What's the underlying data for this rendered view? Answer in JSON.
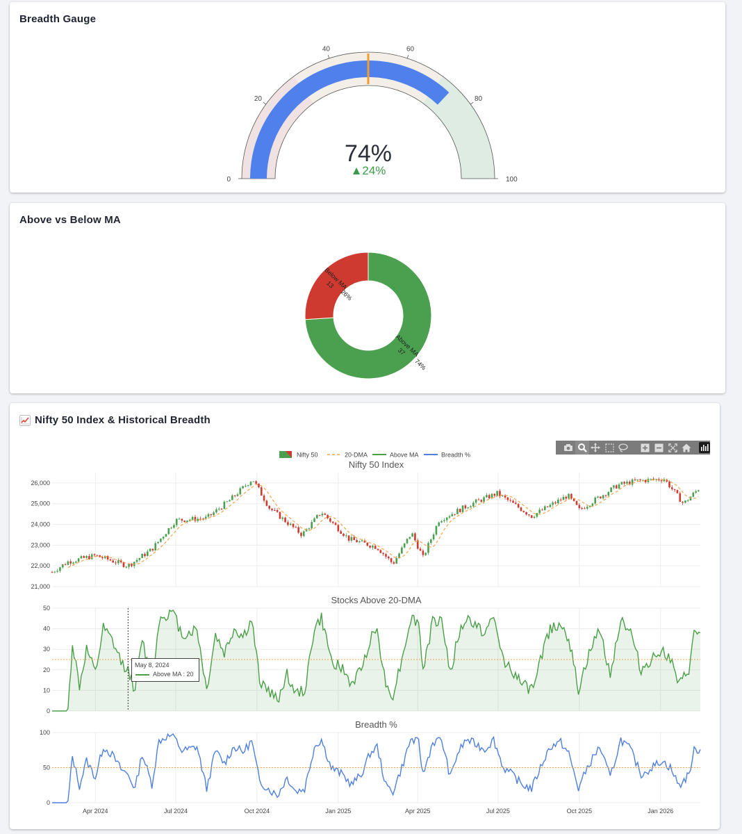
{
  "gauge_card": {
    "title": "Breadth Gauge",
    "value_text": "74%",
    "delta_text": "▲24%",
    "value": 74,
    "reference": 50,
    "threshold": 50,
    "ticks": [
      "0",
      "20",
      "40",
      "60",
      "80",
      "100"
    ],
    "bands": [
      {
        "from": 0,
        "to": 30,
        "color": "#f0e2e2"
      },
      {
        "from": 30,
        "to": 70,
        "color": "#f3efe8"
      },
      {
        "from": 70,
        "to": 100,
        "color": "#dfece3"
      }
    ],
    "bar_color": "#5080ec",
    "threshold_color": "#f39c2b",
    "delta_color": "#3d9a4b"
  },
  "donut_card": {
    "title": "Above vs Below MA",
    "slices": [
      {
        "label": "Above MA",
        "value": 37,
        "pct": "74%",
        "color": "#4aa04e"
      },
      {
        "label": "Below MA",
        "value": 13,
        "pct": "26%",
        "color": "#cf3a30"
      }
    ]
  },
  "history_card": {
    "icon": "chart-increasing-icon",
    "title": "Nifty 50 Index & Historical Breadth",
    "legend": [
      {
        "name": "Nifty 50",
        "kind": "candle"
      },
      {
        "name": "20-DMA",
        "kind": "dash",
        "color": "#f2a34a"
      },
      {
        "name": "Above MA",
        "kind": "line",
        "color": "#4a9f48"
      },
      {
        "name": "Breadth %",
        "kind": "line",
        "color": "#4d7fe0"
      }
    ],
    "tooltip": {
      "date": "May 8, 2024",
      "series": "Above MA : 20"
    },
    "modebar": [
      "camera-icon",
      "zoom-icon",
      "pan-icon",
      "box-select-icon",
      "lasso-icon",
      "zoom-in-icon",
      "zoom-out-icon",
      "autoscale-icon",
      "home-icon",
      "plotly-logo-icon"
    ]
  },
  "chart_data": [
    {
      "type": "candlestick",
      "title": "Nifty 50 Index",
      "ylim": [
        21000,
        26500
      ],
      "yticks": [
        "21,000",
        "22,000",
        "23,000",
        "24,000",
        "25,000",
        "26,000"
      ],
      "x_range": [
        "2024-02-12",
        "2026-02-15"
      ],
      "series": [
        {
          "name": "Nifty 50"
        },
        {
          "name": "20-DMA"
        }
      ],
      "path_points": [
        [
          "2024-02-12",
          21700
        ],
        [
          "2024-03-01",
          22200
        ],
        [
          "2024-04-01",
          22500
        ],
        [
          "2024-05-08",
          22000
        ],
        [
          "2024-06-04",
          22800
        ],
        [
          "2024-07-01",
          24200
        ],
        [
          "2024-08-05",
          24300
        ],
        [
          "2024-09-01",
          25200
        ],
        [
          "2024-09-26",
          26200
        ],
        [
          "2024-10-15",
          24800
        ],
        [
          "2024-11-21",
          23500
        ],
        [
          "2024-12-13",
          24600
        ],
        [
          "2025-01-13",
          23300
        ],
        [
          "2025-02-14",
          22900
        ],
        [
          "2025-03-04",
          22100
        ],
        [
          "2025-03-25",
          23600
        ],
        [
          "2025-04-07",
          22400
        ],
        [
          "2025-04-25",
          24200
        ],
        [
          "2025-06-01",
          25000
        ],
        [
          "2025-06-30",
          25500
        ],
        [
          "2025-08-08",
          24400
        ],
        [
          "2025-09-18",
          25400
        ],
        [
          "2025-10-01",
          24700
        ],
        [
          "2025-11-14",
          25900
        ],
        [
          "2025-12-05",
          26100
        ],
        [
          "2026-01-05",
          26200
        ],
        [
          "2026-01-27",
          25000
        ],
        [
          "2026-02-15",
          25800
        ]
      ]
    },
    {
      "type": "area",
      "title": "Stocks Above 20-DMA",
      "ylim": [
        0,
        50
      ],
      "yticks": [
        "0",
        "10",
        "20",
        "30",
        "40",
        "50"
      ],
      "reference_line": 25,
      "series": [
        {
          "name": "Above MA"
        }
      ],
      "points": [
        [
          "2024-02-12",
          0
        ],
        [
          "2024-03-01",
          0
        ],
        [
          "2024-03-06",
          33
        ],
        [
          "2024-03-14",
          12
        ],
        [
          "2024-03-22",
          30
        ],
        [
          "2024-04-01",
          18
        ],
        [
          "2024-04-10",
          40
        ],
        [
          "2024-04-20",
          34
        ],
        [
          "2024-04-30",
          24
        ],
        [
          "2024-05-08",
          20
        ],
        [
          "2024-05-16",
          10
        ],
        [
          "2024-05-24",
          35
        ],
        [
          "2024-06-04",
          13
        ],
        [
          "2024-06-12",
          44
        ],
        [
          "2024-06-20",
          47
        ],
        [
          "2024-06-28",
          48
        ],
        [
          "2024-07-08",
          37
        ],
        [
          "2024-07-16",
          38
        ],
        [
          "2024-07-25",
          40
        ],
        [
          "2024-08-05",
          10
        ],
        [
          "2024-08-15",
          37
        ],
        [
          "2024-08-25",
          28
        ],
        [
          "2024-09-05",
          40
        ],
        [
          "2024-09-15",
          36
        ],
        [
          "2024-09-25",
          44
        ],
        [
          "2024-10-04",
          15
        ],
        [
          "2024-10-14",
          10
        ],
        [
          "2024-10-24",
          5
        ],
        [
          "2024-11-04",
          18
        ],
        [
          "2024-11-14",
          8
        ],
        [
          "2024-11-24",
          10
        ],
        [
          "2024-12-05",
          40
        ],
        [
          "2024-12-13",
          45
        ],
        [
          "2024-12-24",
          25
        ],
        [
          "2025-01-06",
          20
        ],
        [
          "2025-01-16",
          13
        ],
        [
          "2025-01-27",
          20
        ],
        [
          "2025-02-06",
          35
        ],
        [
          "2025-02-14",
          40
        ],
        [
          "2025-02-24",
          12
        ],
        [
          "2025-03-04",
          8
        ],
        [
          "2025-03-14",
          25
        ],
        [
          "2025-03-24",
          45
        ],
        [
          "2025-04-02",
          43
        ],
        [
          "2025-04-07",
          20
        ],
        [
          "2025-04-18",
          43
        ],
        [
          "2025-04-28",
          45
        ],
        [
          "2025-05-08",
          18
        ],
        [
          "2025-05-16",
          35
        ],
        [
          "2025-05-26",
          45
        ],
        [
          "2025-06-05",
          42
        ],
        [
          "2025-06-16",
          38
        ],
        [
          "2025-06-26",
          45
        ],
        [
          "2025-07-07",
          25
        ],
        [
          "2025-07-17",
          20
        ],
        [
          "2025-07-28",
          13
        ],
        [
          "2025-08-08",
          10
        ],
        [
          "2025-08-20",
          28
        ],
        [
          "2025-08-29",
          40
        ],
        [
          "2025-09-10",
          43
        ],
        [
          "2025-09-19",
          35
        ],
        [
          "2025-09-30",
          10
        ],
        [
          "2025-10-10",
          25
        ],
        [
          "2025-10-24",
          40
        ],
        [
          "2025-11-05",
          18
        ],
        [
          "2025-11-17",
          45
        ],
        [
          "2025-11-28",
          38
        ],
        [
          "2025-12-10",
          20
        ],
        [
          "2025-12-22",
          25
        ],
        [
          "2026-01-02",
          30
        ],
        [
          "2026-01-12",
          25
        ],
        [
          "2026-01-22",
          12
        ],
        [
          "2026-02-02",
          20
        ],
        [
          "2026-02-08",
          37
        ],
        [
          "2026-02-15",
          38
        ]
      ]
    },
    {
      "type": "line",
      "title": "Breadth %",
      "ylim": [
        0,
        100
      ],
      "yticks": [
        "0",
        "50",
        "100"
      ],
      "reference_line": 50,
      "xticks": [
        "Apr 2024",
        "Jul 2024",
        "Oct 2024",
        "Jan 2025",
        "Apr 2025",
        "Jul 2025",
        "Oct 2025",
        "Jan 2026"
      ],
      "series": [
        {
          "name": "Breadth %"
        }
      ],
      "points": [
        [
          "2024-02-12",
          0
        ],
        [
          "2024-03-01",
          0
        ],
        [
          "2024-03-06",
          66
        ],
        [
          "2024-03-14",
          24
        ],
        [
          "2024-03-22",
          60
        ],
        [
          "2024-04-01",
          36
        ],
        [
          "2024-04-10",
          80
        ],
        [
          "2024-04-20",
          68
        ],
        [
          "2024-04-30",
          48
        ],
        [
          "2024-05-08",
          40
        ],
        [
          "2024-05-16",
          20
        ],
        [
          "2024-05-24",
          70
        ],
        [
          "2024-06-04",
          26
        ],
        [
          "2024-06-12",
          88
        ],
        [
          "2024-06-20",
          94
        ],
        [
          "2024-06-28",
          96
        ],
        [
          "2024-07-08",
          74
        ],
        [
          "2024-07-16",
          76
        ],
        [
          "2024-07-25",
          80
        ],
        [
          "2024-08-05",
          20
        ],
        [
          "2024-08-15",
          74
        ],
        [
          "2024-08-25",
          56
        ],
        [
          "2024-09-05",
          80
        ],
        [
          "2024-09-15",
          72
        ],
        [
          "2024-09-25",
          88
        ],
        [
          "2024-10-04",
          30
        ],
        [
          "2024-10-14",
          20
        ],
        [
          "2024-10-24",
          10
        ],
        [
          "2024-11-04",
          36
        ],
        [
          "2024-11-14",
          16
        ],
        [
          "2024-11-24",
          20
        ],
        [
          "2024-12-05",
          80
        ],
        [
          "2024-12-13",
          90
        ],
        [
          "2024-12-24",
          50
        ],
        [
          "2025-01-06",
          40
        ],
        [
          "2025-01-16",
          26
        ],
        [
          "2025-01-27",
          40
        ],
        [
          "2025-02-06",
          70
        ],
        [
          "2025-02-14",
          80
        ],
        [
          "2025-02-24",
          24
        ],
        [
          "2025-03-04",
          16
        ],
        [
          "2025-03-14",
          50
        ],
        [
          "2025-03-24",
          90
        ],
        [
          "2025-04-02",
          86
        ],
        [
          "2025-04-07",
          40
        ],
        [
          "2025-04-18",
          86
        ],
        [
          "2025-04-28",
          90
        ],
        [
          "2025-05-08",
          36
        ],
        [
          "2025-05-16",
          70
        ],
        [
          "2025-05-26",
          90
        ],
        [
          "2025-06-05",
          84
        ],
        [
          "2025-06-16",
          76
        ],
        [
          "2025-06-26",
          90
        ],
        [
          "2025-07-07",
          50
        ],
        [
          "2025-07-17",
          40
        ],
        [
          "2025-07-28",
          26
        ],
        [
          "2025-08-08",
          20
        ],
        [
          "2025-08-20",
          56
        ],
        [
          "2025-08-29",
          80
        ],
        [
          "2025-09-10",
          86
        ],
        [
          "2025-09-19",
          70
        ],
        [
          "2025-09-30",
          20
        ],
        [
          "2025-10-10",
          50
        ],
        [
          "2025-10-24",
          80
        ],
        [
          "2025-11-05",
          36
        ],
        [
          "2025-11-17",
          90
        ],
        [
          "2025-11-28",
          76
        ],
        [
          "2025-12-10",
          40
        ],
        [
          "2025-12-22",
          50
        ],
        [
          "2026-01-02",
          60
        ],
        [
          "2026-01-12",
          50
        ],
        [
          "2026-01-22",
          24
        ],
        [
          "2026-02-02",
          40
        ],
        [
          "2026-02-08",
          74
        ],
        [
          "2026-02-15",
          76
        ]
      ]
    }
  ]
}
